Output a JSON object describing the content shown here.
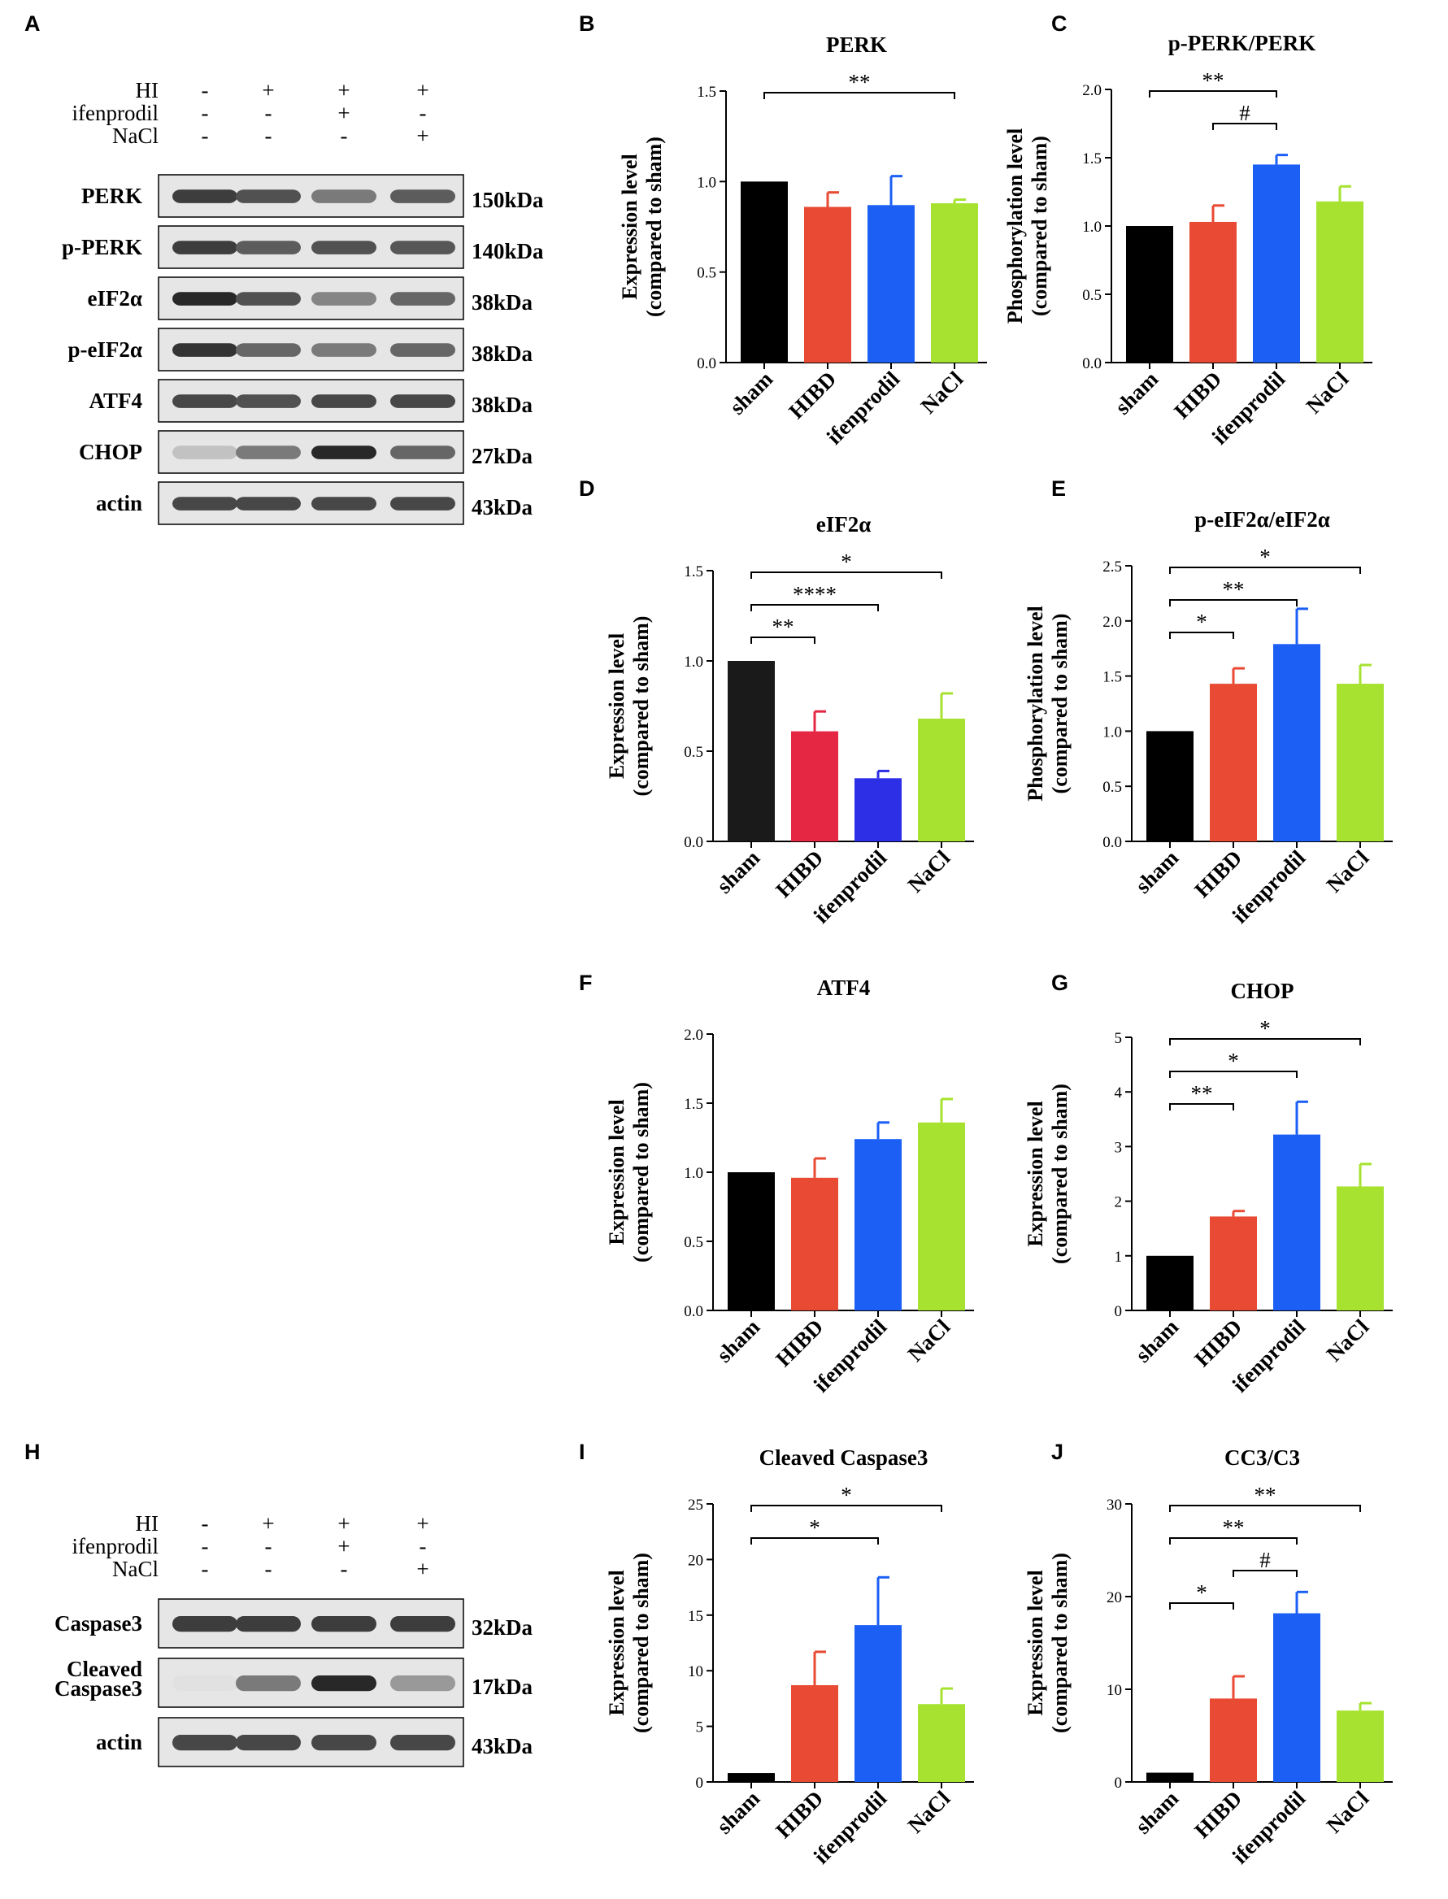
{
  "colors": {
    "sham": "#000000",
    "HIBD": "#e84a33",
    "ifenprodil": "#1c5ff5",
    "NaCl": "#a6e22f",
    "HIBD_D": "#e52744",
    "ifenprodil_D": "#2d2fe6",
    "sham_D": "#1a1a1a"
  },
  "blots": [
    {
      "label": "A",
      "conditions": [
        {
          "name": "HI",
          "signs": [
            "-",
            "+",
            "+",
            "+"
          ]
        },
        {
          "name": "ifenprodil",
          "signs": [
            "-",
            "-",
            "+",
            "-"
          ]
        },
        {
          "name": "NaCl",
          "signs": [
            "-",
            "-",
            "-",
            "+"
          ]
        }
      ],
      "rows": [
        {
          "name": "PERK",
          "kda": "150kDa",
          "intensity": [
            0.85,
            0.75,
            0.55,
            0.7
          ]
        },
        {
          "name": "p-PERK",
          "kda": "140kDa",
          "intensity": [
            0.85,
            0.7,
            0.75,
            0.72
          ]
        },
        {
          "name": "eIF2α",
          "kda": "38kDa",
          "intensity": [
            0.95,
            0.75,
            0.5,
            0.65
          ]
        },
        {
          "name": "p-eIF2α",
          "kda": "38kDa",
          "intensity": [
            0.9,
            0.65,
            0.55,
            0.65
          ]
        },
        {
          "name": "ATF4",
          "kda": "38kDa",
          "intensity": [
            0.8,
            0.75,
            0.8,
            0.8
          ]
        },
        {
          "name": "CHOP",
          "kda": "27kDa",
          "intensity": [
            0.2,
            0.55,
            0.95,
            0.65
          ]
        },
        {
          "name": "actin",
          "kda": "43kDa",
          "intensity": [
            0.8,
            0.8,
            0.8,
            0.8
          ]
        }
      ]
    },
    {
      "label": "H",
      "conditions": [
        {
          "name": "HI",
          "signs": [
            "-",
            "+",
            "+",
            "+"
          ]
        },
        {
          "name": "ifenprodil",
          "signs": [
            "-",
            "-",
            "+",
            "-"
          ]
        },
        {
          "name": "NaCl",
          "signs": [
            "-",
            "-",
            "-",
            "+"
          ]
        }
      ],
      "rows": [
        {
          "name": "Caspase3",
          "kda": "32kDa",
          "intensity": [
            0.85,
            0.85,
            0.85,
            0.85
          ]
        },
        {
          "name": "Cleaved Caspase3",
          "name_lines": [
            "Cleaved",
            "Caspase3"
          ],
          "kda": "17kDa",
          "intensity": [
            0.05,
            0.55,
            0.95,
            0.4
          ]
        },
        {
          "name": "actin",
          "kda": "43kDa",
          "intensity": [
            0.8,
            0.8,
            0.8,
            0.8
          ]
        }
      ]
    }
  ],
  "chart_data": [
    {
      "label": "B",
      "type": "bar",
      "title": "PERK",
      "ylabel": "Expression level (compared to sham)",
      "categories": [
        "sham",
        "HIBD",
        "ifenprodil",
        "NaCl"
      ],
      "values": [
        1.0,
        0.86,
        0.87,
        0.88
      ],
      "errors": [
        0,
        0.08,
        0.16,
        0.02
      ],
      "ylim": [
        0,
        1.5
      ],
      "yticks": [
        "0.0",
        "0.5",
        "1.0",
        "1.5"
      ],
      "significance": [
        {
          "from": 0,
          "to": 3,
          "label": "**"
        }
      ]
    },
    {
      "label": "C",
      "type": "bar",
      "title": "p-PERK/PERK",
      "ylabel": "Phosphorylation level (compared to sham)",
      "categories": [
        "sham",
        "HIBD",
        "ifenprodil",
        "NaCl"
      ],
      "values": [
        1.0,
        1.03,
        1.45,
        1.18
      ],
      "errors": [
        0,
        0.12,
        0.07,
        0.11
      ],
      "ylim": [
        0,
        2.0
      ],
      "yticks": [
        "0.0",
        "0.5",
        "1.0",
        "1.5",
        "2.0"
      ],
      "significance": [
        {
          "from": 0,
          "to": 2,
          "label": "**"
        },
        {
          "from": 1,
          "to": 2,
          "label": "#"
        }
      ]
    },
    {
      "label": "D",
      "type": "bar",
      "title": "eIF2α",
      "ylabel": "Expression level (compared to sham)",
      "categories": [
        "sham",
        "HIBD",
        "ifenprodil",
        "NaCl"
      ],
      "values": [
        1.0,
        0.61,
        0.35,
        0.68
      ],
      "errors": [
        0,
        0.11,
        0.04,
        0.14
      ],
      "ylim": [
        0,
        1.5
      ],
      "yticks": [
        "0.0",
        "0.5",
        "1.0",
        "1.5"
      ],
      "significance": [
        {
          "from": 0,
          "to": 3,
          "label": "*"
        },
        {
          "from": 0,
          "to": 2,
          "label": "****"
        },
        {
          "from": 0,
          "to": 1,
          "label": "**"
        }
      ],
      "alt_colors": true
    },
    {
      "label": "E",
      "type": "bar",
      "title": "p-eIF2α/eIF2α",
      "ylabel": "Phosphorylation level (compared to sham)",
      "categories": [
        "sham",
        "HIBD",
        "ifenprodil",
        "NaCl"
      ],
      "values": [
        1.0,
        1.43,
        1.79,
        1.43
      ],
      "errors": [
        0,
        0.14,
        0.32,
        0.17
      ],
      "ylim": [
        0,
        2.5
      ],
      "yticks": [
        "0.0",
        "0.5",
        "1.0",
        "1.5",
        "2.0",
        "2.5"
      ],
      "significance": [
        {
          "from": 0,
          "to": 3,
          "label": "*"
        },
        {
          "from": 0,
          "to": 2,
          "label": "**"
        },
        {
          "from": 0,
          "to": 1,
          "label": "*"
        }
      ]
    },
    {
      "label": "F",
      "type": "bar",
      "title": "ATF4",
      "ylabel": "Expression level (compared to sham)",
      "categories": [
        "sham",
        "HIBD",
        "ifenprodil",
        "NaCl"
      ],
      "values": [
        1.0,
        0.96,
        1.24,
        1.36
      ],
      "errors": [
        0,
        0.14,
        0.12,
        0.17
      ],
      "ylim": [
        0,
        2.0
      ],
      "yticks": [
        "0.0",
        "0.5",
        "1.0",
        "1.5",
        "2.0"
      ],
      "significance": []
    },
    {
      "label": "G",
      "type": "bar",
      "title": "CHOP",
      "ylabel": "Expression level (compared to sham)",
      "categories": [
        "sham",
        "HIBD",
        "ifenprodil",
        "NaCl"
      ],
      "values": [
        1.0,
        1.72,
        3.22,
        2.27
      ],
      "errors": [
        0,
        0.1,
        0.6,
        0.41
      ],
      "ylim": [
        0,
        5
      ],
      "yticks": [
        "0",
        "1",
        "2",
        "3",
        "4",
        "5"
      ],
      "significance": [
        {
          "from": 0,
          "to": 3,
          "label": "*"
        },
        {
          "from": 0,
          "to": 2,
          "label": "*"
        },
        {
          "from": 0,
          "to": 1,
          "label": "**"
        }
      ]
    },
    {
      "label": "I",
      "type": "bar",
      "title": "Cleaved Caspase3",
      "ylabel": "Expression level (compared to sham)",
      "categories": [
        "sham",
        "HIBD",
        "ifenprodil",
        "NaCl"
      ],
      "values": [
        0.8,
        8.7,
        14.1,
        7.0
      ],
      "errors": [
        0,
        3.0,
        4.3,
        1.4
      ],
      "ylim": [
        0,
        25
      ],
      "yticks": [
        "0",
        "5",
        "10",
        "15",
        "20",
        "25"
      ],
      "significance": [
        {
          "from": 0,
          "to": 3,
          "label": "*"
        },
        {
          "from": 0,
          "to": 2,
          "label": "*"
        }
      ]
    },
    {
      "label": "J",
      "type": "bar",
      "title": "CC3/C3",
      "ylabel": "Expression level (compared to sham)",
      "categories": [
        "sham",
        "HIBD",
        "ifenprodil",
        "NaCl"
      ],
      "values": [
        1.0,
        9.0,
        18.2,
        7.7
      ],
      "errors": [
        0,
        2.4,
        2.3,
        0.8
      ],
      "ylim": [
        0,
        30
      ],
      "yticks": [
        "0",
        "10",
        "20",
        "30"
      ],
      "significance": [
        {
          "from": 0,
          "to": 3,
          "label": "**"
        },
        {
          "from": 0,
          "to": 2,
          "label": "**"
        },
        {
          "from": 1,
          "to": 2,
          "label": "#"
        },
        {
          "from": 0,
          "to": 1,
          "label": "*"
        }
      ]
    }
  ]
}
